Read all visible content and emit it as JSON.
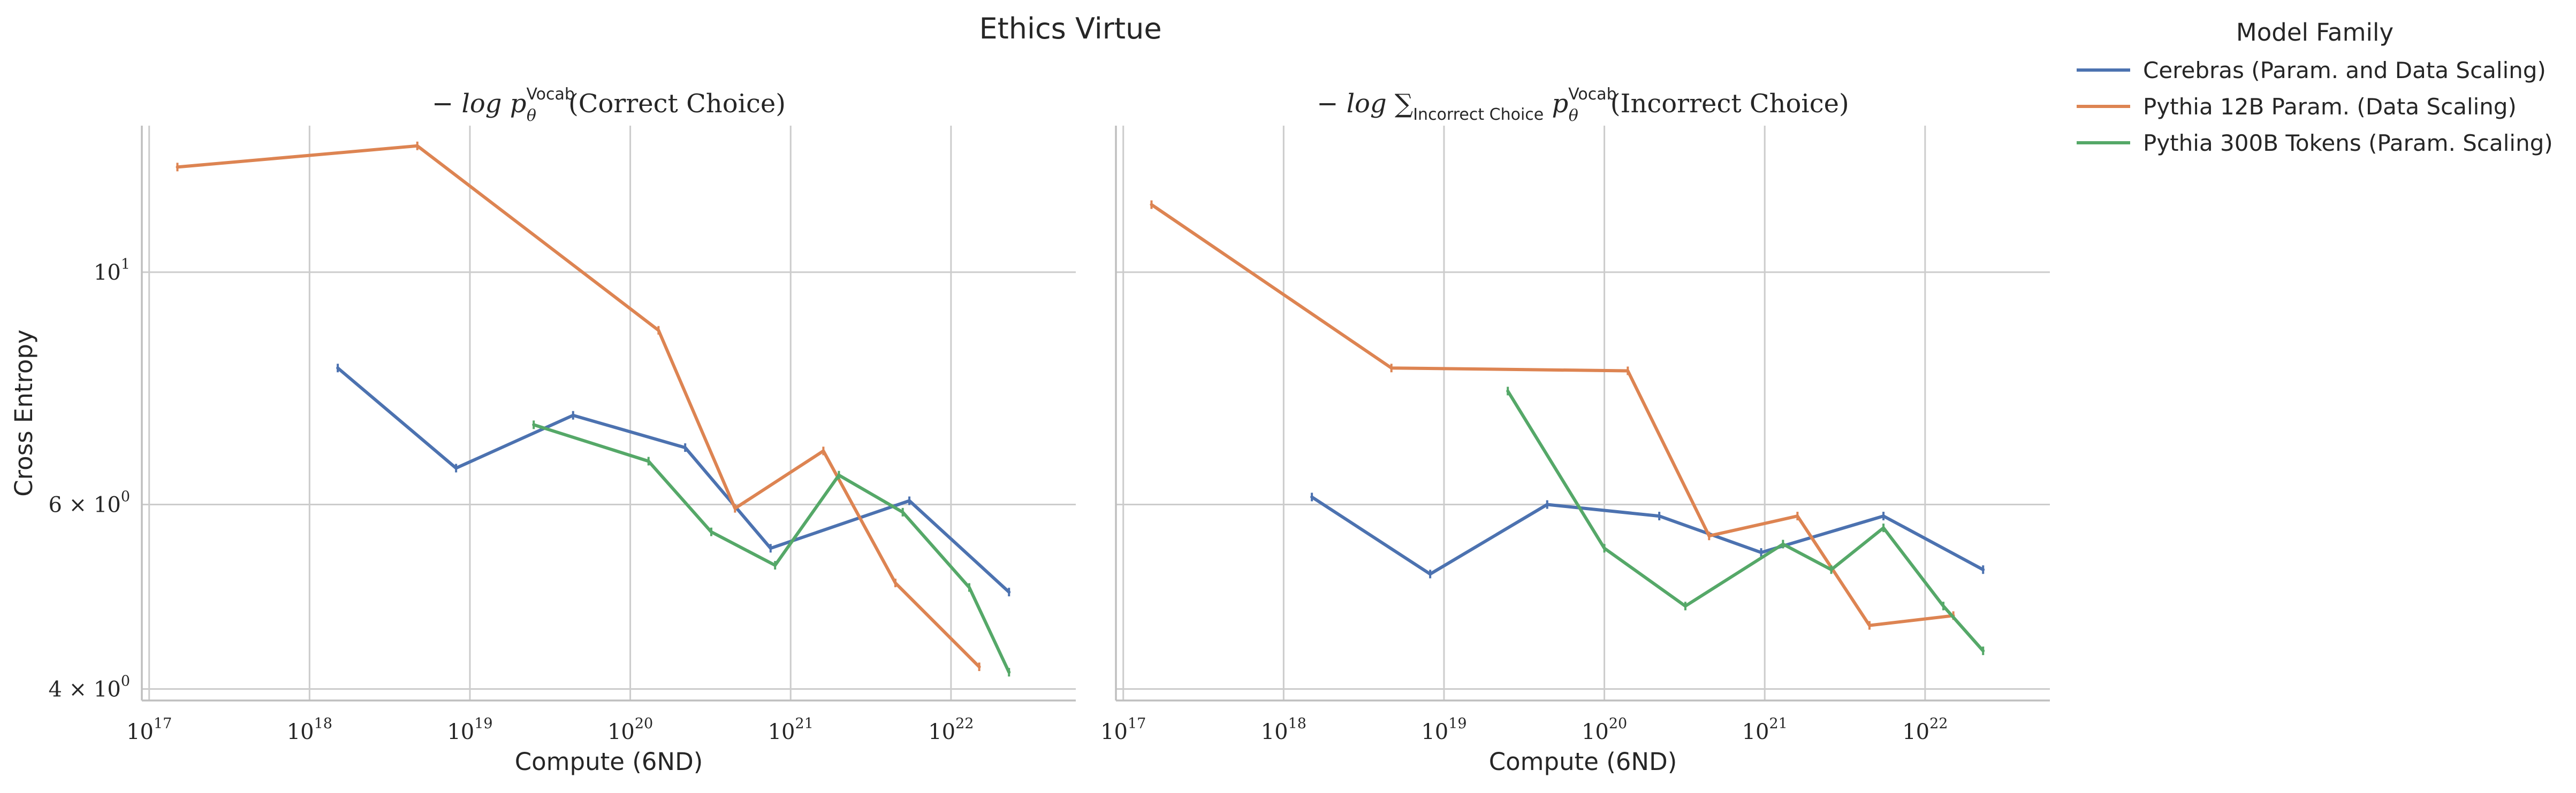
{
  "title": "Ethics Virtue",
  "legend": {
    "title": "Model Family",
    "items": [
      {
        "label": "Cerebras (Param. and Data Scaling)",
        "color": "#4c72b0"
      },
      {
        "label": "Pythia 12B Param. (Data Scaling)",
        "color": "#dd8452"
      },
      {
        "label": "Pythia 300B Tokens (Param. Scaling)",
        "color": "#55a868"
      }
    ]
  },
  "chart_data": [
    {
      "type": "line",
      "title": "−log p_θ^Vocab(Correct Choice)",
      "title_parts": {
        "prefix": "− log p",
        "sub": "θ",
        "sup": "Vocab",
        "suffix": "(Correct Choice)"
      },
      "xlabel": "Compute (6ND)",
      "ylabel": "Cross Entropy",
      "xscale": "log",
      "yscale": "log",
      "xlim": [
        9e+16,
        6e+22
      ],
      "ylim": [
        3.9,
        13.8
      ],
      "x_ticks": [
        {
          "value": 1e+17,
          "base": "10",
          "exp": "17"
        },
        {
          "value": 1e+18,
          "base": "10",
          "exp": "18"
        },
        {
          "value": 1e+19,
          "base": "10",
          "exp": "19"
        },
        {
          "value": 1e+20,
          "base": "10",
          "exp": "20"
        },
        {
          "value": 1e+21,
          "base": "10",
          "exp": "21"
        },
        {
          "value": 1e+22,
          "base": "10",
          "exp": "22"
        }
      ],
      "y_ticks": [
        {
          "value": 4,
          "label": "4 × 10",
          "exp": "0"
        },
        {
          "value": 6,
          "label": "6 × 10",
          "exp": "0"
        },
        {
          "value": 10,
          "label": "10",
          "exp": "1"
        }
      ],
      "grid": true,
      "series": [
        {
          "name": "Cerebras (Param. and Data Scaling)",
          "color": "#4c72b0",
          "points": [
            [
              1.5e+18,
              8.1
            ],
            [
              8.2e+18,
              6.5
            ],
            [
              4.4e+19,
              7.3
            ],
            [
              2.2e+20,
              6.8
            ],
            [
              7.5e+20,
              5.45
            ],
            [
              5.5e+21,
              6.05
            ],
            [
              2.3e+22,
              4.95
            ]
          ]
        },
        {
          "name": "Pythia 12B Param. (Data Scaling)",
          "color": "#dd8452",
          "points": [
            [
              1.5e+17,
              12.6
            ],
            [
              4.7e+18,
              13.2
            ],
            [
              1.5e+20,
              8.8
            ],
            [
              4.5e+20,
              5.95
            ],
            [
              1.6e+21,
              6.75
            ],
            [
              4.5e+21,
              5.05
            ],
            [
              1.5e+22,
              4.2
            ]
          ]
        },
        {
          "name": "Pythia 300B Tokens (Param. Scaling)",
          "color": "#55a868",
          "points": [
            [
              2.5e+19,
              7.15
            ],
            [
              1.3e+20,
              6.6
            ],
            [
              3.2e+20,
              5.65
            ],
            [
              8e+20,
              5.25
            ],
            [
              2e+21,
              6.4
            ],
            [
              5e+21,
              5.9
            ],
            [
              1.3e+22,
              5.0
            ],
            [
              2.3e+22,
              4.15
            ]
          ]
        }
      ]
    },
    {
      "type": "line",
      "title": "−log ∑_Incorrect Choice p_θ^Vocab(Incorrect Choice)",
      "title_parts": {
        "prefix": "− log ∑",
        "sum_sub": "Incorrect Choice",
        "var": "p",
        "sub": "θ",
        "sup": "Vocab",
        "suffix": "(Incorrect Choice)"
      },
      "xlabel": "Compute (6ND)",
      "xscale": "log",
      "yscale": "log",
      "xlim": [
        9e+16,
        6e+22
      ],
      "ylim": [
        3.9,
        13.8
      ],
      "x_ticks": [
        {
          "value": 1e+17,
          "base": "10",
          "exp": "17"
        },
        {
          "value": 1e+18,
          "base": "10",
          "exp": "18"
        },
        {
          "value": 1e+19,
          "base": "10",
          "exp": "19"
        },
        {
          "value": 1e+20,
          "base": "10",
          "exp": "20"
        },
        {
          "value": 1e+21,
          "base": "10",
          "exp": "21"
        },
        {
          "value": 1e+22,
          "base": "10",
          "exp": "22"
        }
      ],
      "grid": true,
      "series": [
        {
          "name": "Cerebras (Param. and Data Scaling)",
          "color": "#4c72b0",
          "points": [
            [
              1.5e+18,
              6.1
            ],
            [
              8.2e+18,
              5.15
            ],
            [
              4.4e+19,
              6.0
            ],
            [
              2.2e+20,
              5.85
            ],
            [
              9.5e+20,
              5.4
            ],
            [
              5.5e+21,
              5.85
            ],
            [
              2.3e+22,
              5.2
            ]
          ]
        },
        {
          "name": "Pythia 12B Param. (Data Scaling)",
          "color": "#dd8452",
          "points": [
            [
              1.5e+17,
              11.6
            ],
            [
              4.7e+18,
              8.1
            ],
            [
              1.4e+20,
              8.05
            ],
            [
              4.5e+20,
              5.6
            ],
            [
              1.6e+21,
              5.85
            ],
            [
              4.5e+21,
              4.6
            ],
            [
              1.5e+22,
              4.7
            ]
          ]
        },
        {
          "name": "Pythia 300B Tokens (Param. Scaling)",
          "color": "#55a868",
          "points": [
            [
              2.5e+19,
              7.7
            ],
            [
              1e+20,
              5.45
            ],
            [
              3.2e+20,
              4.8
            ],
            [
              1.3e+21,
              5.5
            ],
            [
              2.6e+21,
              5.2
            ],
            [
              5.5e+21,
              5.7
            ],
            [
              1.3e+22,
              4.8
            ],
            [
              2.3e+22,
              4.35
            ]
          ]
        }
      ]
    }
  ]
}
